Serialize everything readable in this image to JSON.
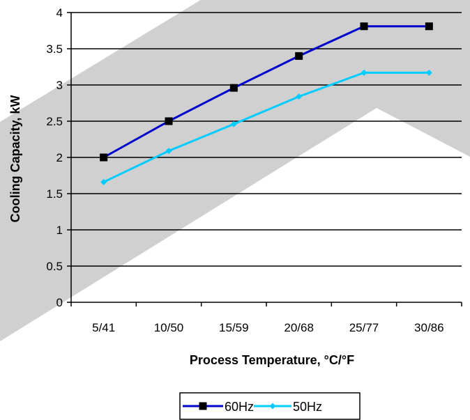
{
  "chart_data": {
    "type": "line",
    "categories": [
      "5/41",
      "10/50",
      "15/59",
      "20/68",
      "25/77",
      "30/86"
    ],
    "series": [
      {
        "name": "60Hz",
        "values": [
          2.0,
          2.5,
          2.96,
          3.4,
          3.81,
          3.81
        ],
        "color": "#0000cc",
        "marker": "square"
      },
      {
        "name": "50Hz",
        "values": [
          1.66,
          2.09,
          2.46,
          2.84,
          3.17,
          3.17
        ],
        "color": "#00ccff",
        "marker": "diamond"
      }
    ],
    "xlabel": "Process Temperature,  °C/°F",
    "ylabel": "Cooling Capacity, kW",
    "ylim": [
      0,
      4
    ],
    "yticks": [
      0,
      0.5,
      1,
      1.5,
      2,
      2.5,
      3,
      3.5,
      4
    ],
    "ytick_labels": [
      "0",
      "0.5",
      "1",
      "1.5",
      "2",
      "2.5",
      "3",
      "3.5",
      "4"
    ],
    "grid": "horizontal",
    "legend_position": "bottom",
    "background_band_color": "#d0d0d0"
  }
}
